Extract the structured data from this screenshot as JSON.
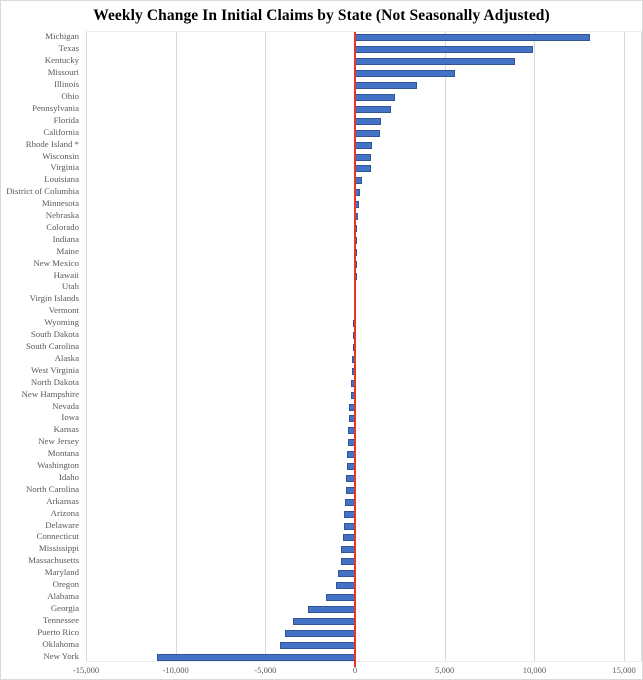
{
  "chart_data": {
    "type": "bar",
    "orientation": "horizontal",
    "title": "Weekly Change In Initial Claims by State (Not Seasonally Adjusted)",
    "categories": [
      "Michigan",
      "Texas",
      "Kentucky",
      "Missouri",
      "Illinois",
      "Ohio",
      "Pennsylvania",
      "Florida",
      "California",
      "Rhode Island *",
      "Wisconsin",
      "Virginia",
      "Louisiana",
      "District of Columbia",
      "Minnesota",
      "Nebraska",
      "Colorado",
      "Indiana",
      "Maine",
      "New Mexico",
      "Hawaii",
      "Utah",
      "Virgin Islands",
      "Vermont",
      "Wyoming",
      "South Dakota",
      "South Carolina",
      "Alaska",
      "West Virginia",
      "North Dakota",
      "New Hampshire",
      "Nevada",
      "Iowa",
      "Kansas",
      "New Jersey",
      "Montana",
      "Washington",
      "Idaho",
      "North Carolina",
      "Arkansas",
      "Arizona",
      "Delaware",
      "Connecticut",
      "Mississippi",
      "Massachusetts",
      "Maryland",
      "Oregon",
      "Alabama",
      "Georgia",
      "Tennessee",
      "Puerto Rico",
      "Oklahoma",
      "New York"
    ],
    "values": [
      13100,
      9950,
      8900,
      5600,
      3450,
      2230,
      2000,
      1450,
      1400,
      950,
      900,
      870,
      400,
      300,
      240,
      170,
      110,
      60,
      30,
      10,
      -20,
      -40,
      -60,
      -80,
      -100,
      -115,
      -130,
      -150,
      -175,
      -200,
      -250,
      -320,
      -360,
      -390,
      -420,
      -440,
      -460,
      -490,
      -530,
      -560,
      -590,
      -620,
      -680,
      -760,
      -800,
      -950,
      -1070,
      -1600,
      -2630,
      -3440,
      -3930,
      -4170,
      -11050
    ],
    "xlabel": "",
    "ylabel": "",
    "xlim": [
      -15000,
      16000
    ],
    "x_ticks": [
      -15000,
      -10000,
      -5000,
      0,
      5000,
      10000,
      15000
    ],
    "x_tick_labels": [
      "-15,000",
      "-10,000",
      "-5,000",
      "0",
      "5,000",
      "10,000",
      "15,000"
    ],
    "grid": true,
    "legend": false,
    "colors": {
      "bar_fill": "#4472C4",
      "bar_border": "#2F5597",
      "zero_line": "#EA3428",
      "gridline": "#D9D9D9",
      "label_text": "#595959",
      "title_text": "#000000"
    }
  }
}
